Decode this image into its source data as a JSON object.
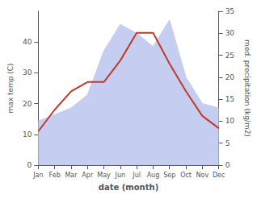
{
  "chart_data": {
    "type": "line",
    "xlabel": "date (month)",
    "ylabel": "max temp (C)",
    "y2label": "med. precipitation (kg/m2)",
    "categories": [
      "Jan",
      "Feb",
      "Mar",
      "Apr",
      "May",
      "Jun",
      "Jul",
      "Aug",
      "Sep",
      "Oct",
      "Nov",
      "Dec"
    ],
    "series": [
      {
        "type": "area",
        "axis": "y2",
        "color": "#c5cdf0",
        "values": [
          10,
          11.5,
          13,
          16,
          26,
          32,
          30,
          27,
          33,
          20,
          14,
          13
        ]
      },
      {
        "type": "line",
        "color": "#c0392b",
        "values": [
          11,
          18,
          24,
          27,
          27,
          34,
          43,
          43,
          33,
          24,
          16,
          12
        ]
      }
    ],
    "ylim": [
      0,
      50
    ],
    "yticks": [
      0,
      10,
      20,
      30,
      40
    ],
    "y2lim": [
      0,
      35
    ],
    "y2ticks": [
      0,
      5,
      10,
      15,
      20,
      25,
      30,
      35
    ],
    "grid": false
  }
}
